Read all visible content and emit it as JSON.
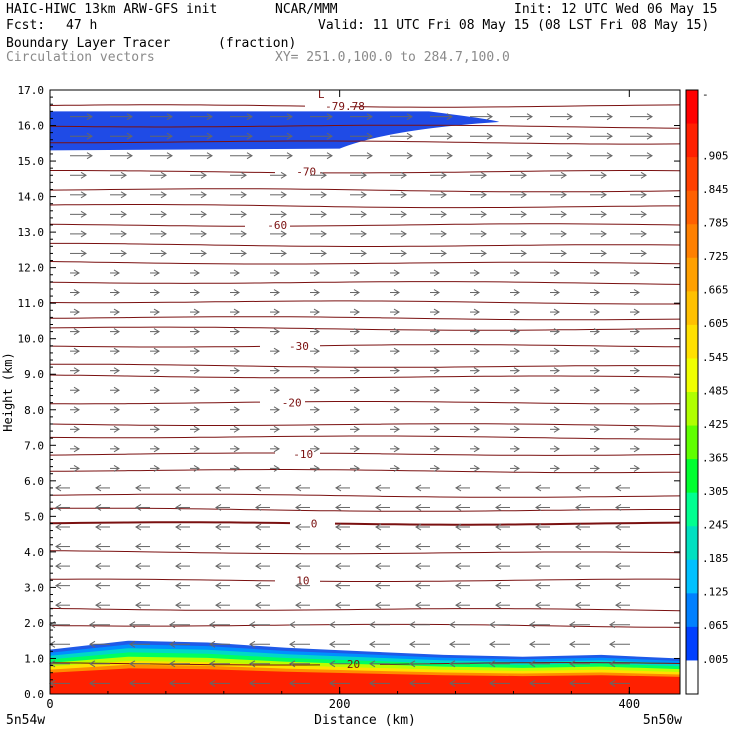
{
  "header": {
    "model": "HAIC-HIWC 13km ARW-GFS init",
    "center": "NCAR/MMM",
    "init": "Init: 12 UTC Wed 06 May 15",
    "fcst_label": "Fcst:",
    "fcst_value": "47 h",
    "valid": "Valid: 11 UTC Fri 08 May 15 (08 LST Fri 08 May 15)",
    "field_name": "Boundary Layer Tracer",
    "field_units": "(fraction)",
    "vector_label": "Circulation vectors",
    "xy_label": "XY= 251.0,100.0 to 284.7,100.0"
  },
  "chart_data": {
    "type": "cross-section",
    "ylabel": "Height (km)",
    "xlabel": "Distance (km)",
    "ylim": [
      0,
      17
    ],
    "xlim": [
      0,
      435
    ],
    "y_ticks": [
      "0.0",
      "1.0",
      "2.0",
      "3.0",
      "4.0",
      "5.0",
      "6.0",
      "7.0",
      "8.0",
      "9.0",
      "10.0",
      "11.0",
      "12.0",
      "13.0",
      "14.0",
      "15.0",
      "16.0",
      "17.0"
    ],
    "x_ticks": [
      {
        "value": 0,
        "label": "0"
      },
      {
        "value": 200,
        "label": "200"
      },
      {
        "value": 400,
        "label": "400"
      }
    ],
    "x_end_labels": {
      "left": "5n54w",
      "right": "5n50w"
    },
    "colorbar": {
      "labels": [
        "-",
        ".905",
        ".845",
        ".785",
        ".725",
        ".665",
        ".605",
        ".545",
        ".485",
        ".425",
        ".365",
        ".305",
        ".245",
        ".185",
        ".125",
        ".065",
        ".005"
      ],
      "colors": [
        "#ff0000",
        "#ff2000",
        "#ff4000",
        "#ff6000",
        "#ff8000",
        "#ffa000",
        "#ffc000",
        "#ffe000",
        "#f0ff00",
        "#b0ff00",
        "#60ff00",
        "#00ff30",
        "#00ff90",
        "#00e0c0",
        "#00c0ff",
        "#0080ff",
        "#0040ff",
        "#ffffff"
      ]
    },
    "temperature_contours": [
      {
        "label": "-79.78",
        "height_km": 16.55,
        "label_x_km": 190
      },
      {
        "label": "-70",
        "height_km": 14.7,
        "label_x_km": 170
      },
      {
        "label": "-60",
        "height_km": 13.2,
        "label_x_km": 150
      },
      {
        "label": "-30",
        "height_km": 9.8,
        "label_x_km": 165
      },
      {
        "label": "-20",
        "height_km": 8.2,
        "label_x_km": 160
      },
      {
        "label": "-10",
        "height_km": 6.75,
        "label_x_km": 168
      },
      {
        "label": "0",
        "height_km": 4.8,
        "label_x_km": 180
      },
      {
        "label": "10",
        "height_km": 3.2,
        "label_x_km": 170
      },
      {
        "label": "20",
        "height_km": 0.85,
        "label_x_km": 205
      }
    ],
    "unlabeled_contours_km": [
      16.0,
      15.55,
      14.2,
      13.75,
      12.65,
      12.15,
      11.6,
      11.05,
      10.6,
      10.3,
      9.25,
      8.95,
      7.6,
      7.25,
      6.3,
      5.6,
      5.2,
      4.0,
      2.4,
      1.95
    ],
    "upper_tracer_layer": {
      "base_km": 15.3,
      "top_km": 16.4,
      "extent_km": [
        0,
        310
      ]
    },
    "boundary_layer_top_km": [
      1.25,
      1.5,
      1.45,
      1.3,
      1.2,
      1.1,
      1.05,
      1.1,
      1.0
    ]
  }
}
